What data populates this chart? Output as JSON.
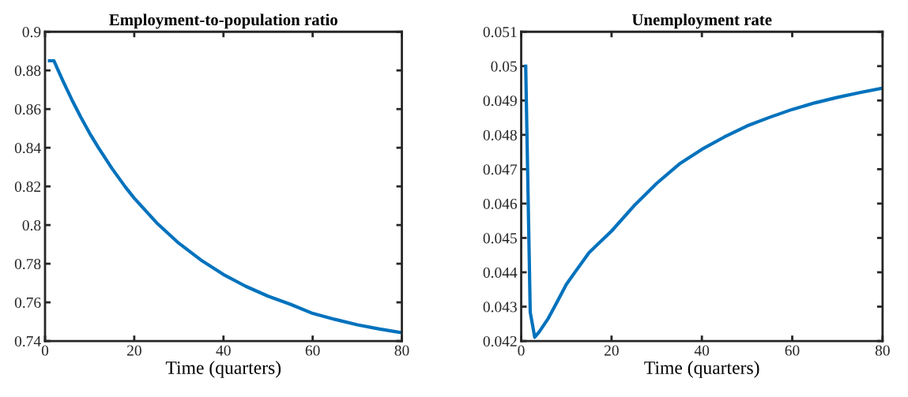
{
  "chart_data": [
    {
      "type": "line",
      "title": "Employment-to-population ratio",
      "xlabel": "Time (quarters)",
      "xlim": [
        0,
        80
      ],
      "xticks": [
        0,
        20,
        40,
        60,
        80
      ],
      "ylim": [
        0.74,
        0.9
      ],
      "yticks": [
        0.74,
        0.76,
        0.78,
        0.8,
        0.82,
        0.84,
        0.86,
        0.88,
        0.9
      ],
      "grid": false,
      "legend": false,
      "x": [
        1,
        2,
        3,
        4,
        6,
        8,
        10,
        12,
        15,
        18,
        20,
        25,
        30,
        35,
        40,
        45,
        50,
        55,
        60,
        65,
        70,
        75,
        80
      ],
      "series": [
        {
          "color": "#0072bd",
          "values": [
            0.885,
            0.885,
            0.8797,
            0.8746,
            0.8649,
            0.8559,
            0.8475,
            0.8399,
            0.8293,
            0.8197,
            0.8139,
            0.8012,
            0.7906,
            0.7818,
            0.7744,
            0.7683,
            0.7632,
            0.759,
            0.7543,
            0.7512,
            0.7484,
            0.7462,
            0.7443
          ]
        }
      ]
    },
    {
      "type": "line",
      "title": "Unemployment rate",
      "xlabel": "Time (quarters)",
      "xlim": [
        0,
        80
      ],
      "xticks": [
        0,
        20,
        40,
        60,
        80
      ],
      "ylim": [
        0.042,
        0.051
      ],
      "yticks": [
        0.042,
        0.043,
        0.044,
        0.045,
        0.046,
        0.047,
        0.048,
        0.049,
        0.05,
        0.051
      ],
      "grid": false,
      "legend": false,
      "x": [
        1,
        2,
        3,
        4,
        6,
        8,
        10,
        12,
        15,
        20,
        25,
        30,
        35,
        40,
        45,
        50,
        55,
        60,
        65,
        70,
        75,
        80
      ],
      "series": [
        {
          "color": "#0072bd",
          "values": [
            0.05,
            0.04284,
            0.04211,
            0.04227,
            0.04266,
            0.04315,
            0.04365,
            0.04402,
            0.04457,
            0.0452,
            0.04594,
            0.04659,
            0.04715,
            0.04758,
            0.04794,
            0.04826,
            0.04851,
            0.04874,
            0.04893,
            0.04909,
            0.04923,
            0.04936
          ]
        }
      ]
    }
  ]
}
